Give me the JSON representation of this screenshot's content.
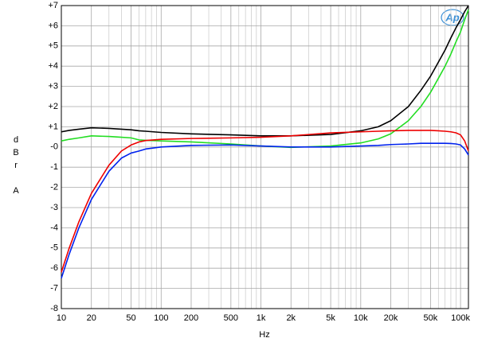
{
  "chart_data": {
    "type": "line",
    "xlabel": "Hz",
    "ylabel": "dBr A",
    "logo": "Ap",
    "xscale": "log",
    "xlim": [
      10,
      120000
    ],
    "ylim": [
      -8,
      7
    ],
    "grid": true,
    "xticks": [
      10,
      20,
      50,
      100,
      200,
      500,
      {
        "value": 1000,
        "label": "1k"
      },
      {
        "value": 2000,
        "label": "2k"
      },
      {
        "value": 5000,
        "label": "5k"
      },
      {
        "value": 10000,
        "label": "10k"
      },
      {
        "value": 20000,
        "label": "20k"
      },
      {
        "value": 50000,
        "label": "50k"
      },
      {
        "value": 100000,
        "label": "100k"
      }
    ],
    "x_minor_grid": [
      30,
      40,
      60,
      70,
      80,
      90,
      300,
      400,
      600,
      700,
      800,
      900,
      3000,
      4000,
      6000,
      7000,
      8000,
      9000,
      30000,
      40000,
      60000,
      70000,
      80000,
      90000
    ],
    "yticks": [
      {
        "value": 7,
        "label": "+7"
      },
      {
        "value": 6,
        "label": "+6"
      },
      {
        "value": 5,
        "label": "+5"
      },
      {
        "value": 4,
        "label": "+4"
      },
      {
        "value": 3,
        "label": "+3"
      },
      {
        "value": 2,
        "label": "+2"
      },
      {
        "value": 1,
        "label": "+1"
      },
      {
        "value": 0,
        "label": "-0"
      },
      -1,
      -2,
      -3,
      -4,
      -5,
      -6,
      -7,
      -8
    ],
    "x": [
      10,
      12,
      15,
      20,
      30,
      40,
      50,
      60,
      70,
      100,
      200,
      500,
      1000,
      2000,
      5000,
      10000,
      15000,
      20000,
      30000,
      40000,
      50000,
      60000,
      70000,
      80000,
      90000,
      100000,
      110000,
      120000
    ],
    "series": [
      {
        "color": "#000000",
        "values": [
          0.75,
          0.82,
          0.88,
          0.95,
          0.92,
          0.88,
          0.85,
          0.8,
          0.78,
          0.72,
          0.65,
          0.6,
          0.55,
          0.55,
          0.62,
          0.8,
          1.0,
          1.3,
          2.0,
          2.8,
          3.5,
          4.2,
          4.8,
          5.4,
          5.9,
          6.3,
          6.7,
          7.0
        ]
      },
      {
        "color": "#22dd22",
        "values": [
          0.3,
          0.38,
          0.45,
          0.55,
          0.52,
          0.48,
          0.45,
          0.35,
          0.33,
          0.3,
          0.25,
          0.15,
          0.05,
          -0.02,
          0.05,
          0.2,
          0.4,
          0.65,
          1.3,
          2.0,
          2.7,
          3.4,
          4.0,
          4.6,
          5.2,
          5.7,
          6.3,
          6.8
        ]
      },
      {
        "color": "#ee0000",
        "values": [
          -6.2,
          -5.0,
          -3.7,
          -2.3,
          -0.9,
          -0.2,
          0.1,
          0.25,
          0.32,
          0.38,
          0.42,
          0.45,
          0.48,
          0.55,
          0.7,
          0.75,
          0.78,
          0.8,
          0.82,
          0.82,
          0.82,
          0.8,
          0.78,
          0.75,
          0.7,
          0.6,
          0.3,
          -0.2
        ]
      },
      {
        "color": "#0022ee",
        "values": [
          -6.5,
          -5.3,
          -4.0,
          -2.6,
          -1.2,
          -0.55,
          -0.3,
          -0.2,
          -0.1,
          0.0,
          0.08,
          0.1,
          0.05,
          0.0,
          0.0,
          0.05,
          0.08,
          0.12,
          0.15,
          0.18,
          0.18,
          0.18,
          0.18,
          0.17,
          0.15,
          0.1,
          -0.1,
          -0.4
        ]
      }
    ]
  }
}
